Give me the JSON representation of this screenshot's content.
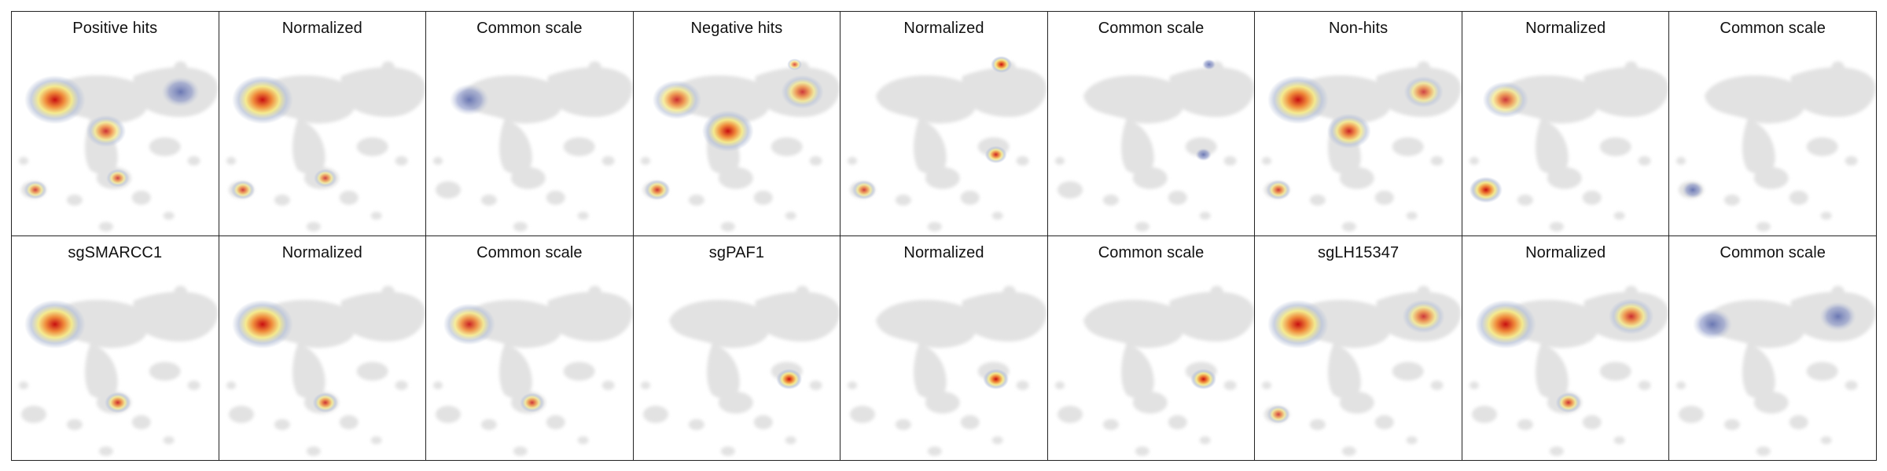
{
  "rows": [
    {
      "panels": [
        {
          "title": "Positive hits",
          "hotspots": [
            {
              "region": "upper-left island",
              "level": 1.0
            },
            {
              "region": "central bridge",
              "level": 0.55
            },
            {
              "region": "right ring",
              "level": 0.35
            },
            {
              "region": "lower-left island",
              "level": 0.4
            },
            {
              "region": "lower center blob",
              "level": 0.4
            }
          ]
        },
        {
          "title": "Normalized",
          "hotspots": [
            {
              "region": "upper-left island",
              "level": 1.0
            },
            {
              "region": "lower-left island",
              "level": 0.45
            },
            {
              "region": "lower center blob",
              "level": 0.4
            }
          ]
        },
        {
          "title": "Common scale",
          "hotspots": [
            {
              "region": "upper-left island",
              "level": 0.3
            }
          ]
        },
        {
          "title": "Negative hits",
          "hotspots": [
            {
              "region": "central bridge",
              "level": 1.0
            },
            {
              "region": "upper-left island",
              "level": 0.6
            },
            {
              "region": "right ring",
              "level": 0.5
            },
            {
              "region": "top-right dot",
              "level": 0.4
            },
            {
              "region": "lower-left island",
              "level": 0.55
            }
          ]
        },
        {
          "title": "Normalized",
          "hotspots": [
            {
              "region": "top-right dot",
              "level": 1.0
            },
            {
              "region": "right lower dot",
              "level": 0.7
            },
            {
              "region": "lower-left island",
              "level": 0.45
            }
          ]
        },
        {
          "title": "Common scale",
          "hotspots": [
            {
              "region": "top-right dot",
              "level": 0.3
            },
            {
              "region": "right lower dot",
              "level": 0.25
            }
          ]
        },
        {
          "title": "Non-hits",
          "hotspots": [
            {
              "region": "upper-left island",
              "level": 1.0
            },
            {
              "region": "central bridge",
              "level": 0.7
            },
            {
              "region": "right ring",
              "level": 0.4
            },
            {
              "region": "lower-left island",
              "level": 0.5
            }
          ]
        },
        {
          "title": "Normalized",
          "hotspots": [
            {
              "region": "lower-left island",
              "level": 1.0
            },
            {
              "region": "upper-left island",
              "level": 0.5
            }
          ]
        },
        {
          "title": "Common scale",
          "hotspots": [
            {
              "region": "lower-left island",
              "level": 0.3
            }
          ]
        }
      ]
    },
    {
      "panels": [
        {
          "title": "sgSMARCC1",
          "hotspots": [
            {
              "region": "upper-left island",
              "level": 1.0
            },
            {
              "region": "lower center blob",
              "level": 0.6
            }
          ]
        },
        {
          "title": "Normalized",
          "hotspots": [
            {
              "region": "upper-left island",
              "level": 1.0
            },
            {
              "region": "lower center blob",
              "level": 0.55
            }
          ]
        },
        {
          "title": "Common scale",
          "hotspots": [
            {
              "region": "upper-left island",
              "level": 0.7
            },
            {
              "region": "lower center blob",
              "level": 0.5
            }
          ]
        },
        {
          "title": "sgPAF1",
          "hotspots": [
            {
              "region": "right lower dot",
              "level": 1.0
            }
          ]
        },
        {
          "title": "Normalized",
          "hotspots": [
            {
              "region": "right lower dot",
              "level": 1.0
            }
          ]
        },
        {
          "title": "Common scale",
          "hotspots": [
            {
              "region": "right lower dot",
              "level": 1.0
            }
          ]
        },
        {
          "title": "sgLH15347",
          "hotspots": [
            {
              "region": "upper-left island",
              "level": 1.0
            },
            {
              "region": "right ring",
              "level": 0.5
            },
            {
              "region": "lower-left island",
              "level": 0.4
            }
          ]
        },
        {
          "title": "Normalized",
          "hotspots": [
            {
              "region": "upper-left island",
              "level": 1.0
            },
            {
              "region": "right ring",
              "level": 0.6
            },
            {
              "region": "lower center blob",
              "level": 0.55
            }
          ]
        },
        {
          "title": "Common scale",
          "hotspots": [
            {
              "region": "upper-left island",
              "level": 0.3
            },
            {
              "region": "right ring",
              "level": 0.3
            }
          ]
        }
      ]
    }
  ],
  "chart_data": {
    "type": "heatmap",
    "colors": {
      "background_cells": "#e2e2e2",
      "low": "#b8c2d8",
      "mid": "#f4e98a",
      "high": "#c80f10"
    }
  }
}
